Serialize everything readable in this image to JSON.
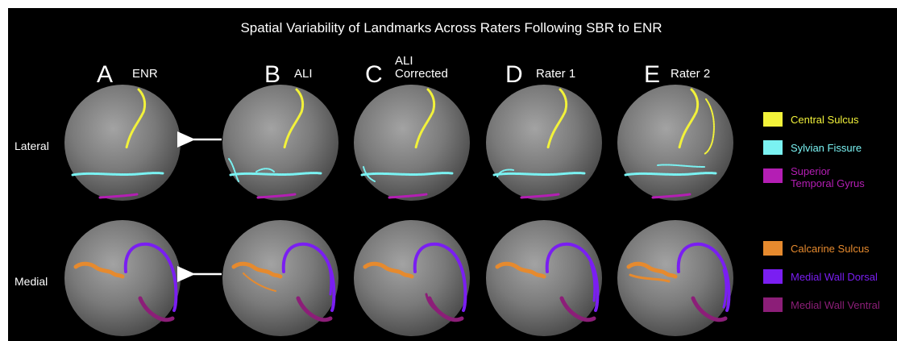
{
  "title": "Spatial Variability of Landmarks Across Raters Following SBR to ENR",
  "columns": [
    {
      "letter": "A",
      "label": [
        "ENR"
      ]
    },
    {
      "letter": "B",
      "label": [
        "ALI"
      ]
    },
    {
      "letter": "C",
      "label": [
        "ALI",
        "Corrected"
      ]
    },
    {
      "letter": "D",
      "label": [
        "Rater 1"
      ]
    },
    {
      "letter": "E",
      "label": [
        "Rater 2"
      ]
    }
  ],
  "rows": [
    {
      "label": "Lateral"
    },
    {
      "label": "Medial"
    }
  ],
  "legend_lateral": [
    {
      "label": [
        "Central Sulcus"
      ],
      "color": "#f2f23a"
    },
    {
      "label": [
        "Sylvian Fissure"
      ],
      "color": "#7af2f2"
    },
    {
      "label": [
        "Superior",
        "Temporal Gyrus"
      ],
      "color": "#b41eb4"
    }
  ],
  "legend_medial": [
    {
      "label": [
        "Calcarine Sulcus"
      ],
      "color": "#e68a2e"
    },
    {
      "label": [
        "Medial Wall Dorsal"
      ],
      "color": "#7a1ef2"
    },
    {
      "label": [
        "Medial Wall Ventral"
      ],
      "color": "#8c1e78"
    }
  ]
}
